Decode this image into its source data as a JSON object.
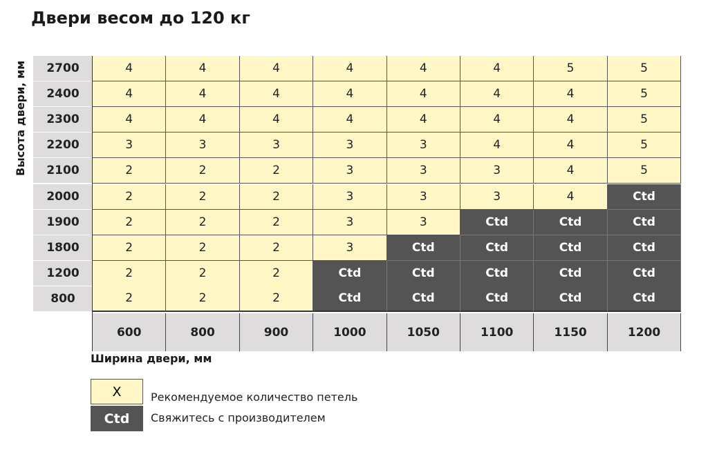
{
  "title": "Двери весом до 120 кг",
  "y_axis_label": "Высота двери, мм",
  "x_axis_label": "Ширина двери, мм",
  "heights": [
    "2700",
    "2400",
    "2300",
    "2200",
    "2100",
    "2000",
    "1900",
    "1800",
    "1200",
    "800"
  ],
  "widths": [
    "600",
    "800",
    "900",
    "1000",
    "1050",
    "1100",
    "1150",
    "1200"
  ],
  "values": [
    [
      "4",
      "4",
      "4",
      "4",
      "4",
      "4",
      "5",
      "5"
    ],
    [
      "4",
      "4",
      "4",
      "4",
      "4",
      "4",
      "4",
      "5"
    ],
    [
      "4",
      "4",
      "4",
      "4",
      "4",
      "4",
      "4",
      "5"
    ],
    [
      "3",
      "3",
      "3",
      "3",
      "3",
      "4",
      "4",
      "5"
    ],
    [
      "2",
      "2",
      "2",
      "3",
      "3",
      "3",
      "4",
      "5"
    ],
    [
      "2",
      "2",
      "2",
      "3",
      "3",
      "3",
      "4",
      "Ctd"
    ],
    [
      "2",
      "2",
      "2",
      "3",
      "3",
      "Ctd",
      "Ctd",
      "Ctd"
    ],
    [
      "2",
      "2",
      "2",
      "3",
      "Ctd",
      "Ctd",
      "Ctd",
      "Ctd"
    ],
    [
      "2",
      "2",
      "2",
      "Ctd",
      "Ctd",
      "Ctd",
      "Ctd",
      "Ctd"
    ],
    [
      "2",
      "2",
      "2",
      "Ctd",
      "Ctd",
      "Ctd",
      "Ctd",
      "Ctd"
    ]
  ],
  "legend": [
    {
      "symbol": "X",
      "text": "Рекомендуемое количество петель"
    },
    {
      "symbol": "Ctd",
      "text": "Свяжитесь с производителем"
    }
  ],
  "colors": {
    "recommended": "#fff8c6",
    "contact": "#545454",
    "header": "#dedcdc"
  }
}
